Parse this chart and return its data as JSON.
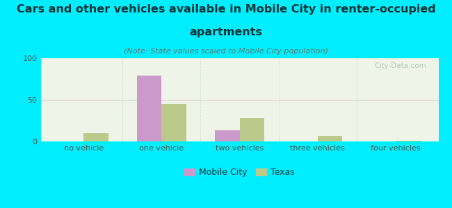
{
  "title_line1": "Cars and other vehicles available in Mobile City in renter-occupied",
  "title_line2": "apartments",
  "subtitle": "(Note: State values scaled to Mobile City population)",
  "categories": [
    "no vehicle",
    "one vehicle",
    "two vehicles",
    "three vehicles",
    "four vehicles"
  ],
  "mobile_city_values": [
    0,
    79,
    13,
    0,
    0
  ],
  "texas_values": [
    10,
    45,
    28,
    7,
    1
  ],
  "mobile_city_color": "#cc99cc",
  "texas_color": "#bbc98a",
  "background_color": "#00eeff",
  "plot_bg_color": "#eef5e8",
  "ylim": [
    0,
    100
  ],
  "yticks": [
    0,
    50,
    100
  ],
  "bar_width": 0.32,
  "title_fontsize": 11.5,
  "subtitle_fontsize": 8,
  "tick_fontsize": 8,
  "legend_fontsize": 9,
  "title_color": "#003333",
  "tick_color": "#445544",
  "subtitle_color": "#667766",
  "watermark": "City-Data.com"
}
